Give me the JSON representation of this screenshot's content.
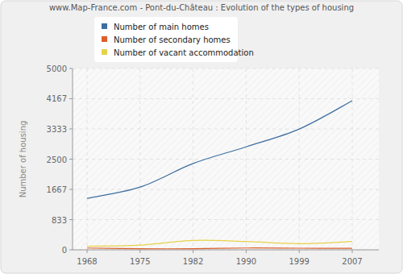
{
  "chart_data": {
    "type": "line",
    "title": "www.Map-France.com - Pont-du-Château : Evolution of the types of housing",
    "y_label": "Number of housing",
    "categories": [
      "1968",
      "1975",
      "1982",
      "1990",
      "1999",
      "2007"
    ],
    "series": [
      {
        "name": "Number of main homes",
        "color": "#3e6e9f",
        "values": [
          1420,
          1730,
          2380,
          2840,
          3330,
          4110
        ]
      },
      {
        "name": "Number of secondary homes",
        "color": "#dd5e2b",
        "values": [
          50,
          30,
          30,
          50,
          45,
          40
        ]
      },
      {
        "name": "Number of vacant accommodation",
        "color": "#e6d24a",
        "values": [
          100,
          130,
          260,
          230,
          170,
          230
        ]
      }
    ],
    "ylim": [
      0,
      5000
    ],
    "yticks": [
      0,
      833,
      1667,
      2500,
      3333,
      4167,
      5000
    ],
    "grid": true,
    "legend": "top"
  }
}
